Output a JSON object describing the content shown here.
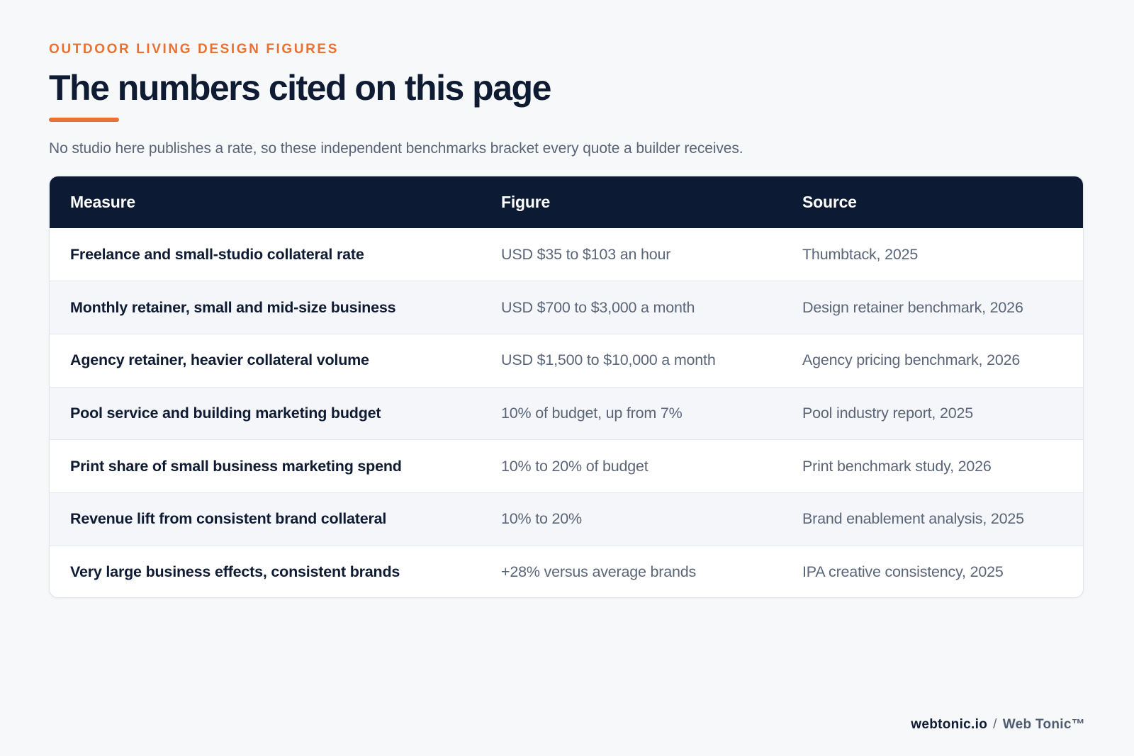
{
  "header": {
    "eyebrow": "OUTDOOR LIVING DESIGN FIGURES",
    "title": "The numbers cited on this page",
    "subtitle": "No studio here publishes a rate, so these independent benchmarks bracket every quote a builder receives."
  },
  "table": {
    "columns": [
      "Measure",
      "Figure",
      "Source"
    ],
    "rows": [
      {
        "measure": "Freelance and small-studio collateral rate",
        "figure": "USD $35 to $103 an hour",
        "source": "Thumbtack, 2025"
      },
      {
        "measure": "Monthly retainer, small and mid-size business",
        "figure": "USD $700 to $3,000 a month",
        "source": "Design retainer benchmark, 2026"
      },
      {
        "measure": "Agency retainer, heavier collateral volume",
        "figure": "USD $1,500 to $10,000 a month",
        "source": "Agency pricing benchmark, 2026"
      },
      {
        "measure": "Pool service and building marketing budget",
        "figure": "10% of budget, up from 7%",
        "source": "Pool industry report, 2025"
      },
      {
        "measure": "Print share of small business marketing spend",
        "figure": "10% to 20% of budget",
        "source": "Print benchmark study, 2026"
      },
      {
        "measure": "Revenue lift from consistent brand collateral",
        "figure": "10% to 20%",
        "source": "Brand enablement analysis, 2025"
      },
      {
        "measure": "Very large business effects, consistent brands",
        "figure": "+28% versus average brands",
        "source": "IPA creative consistency, 2025"
      }
    ]
  },
  "footer": {
    "domain": "webtonic.io",
    "separator": "/",
    "brand": "Web Tonic™"
  },
  "colors": {
    "accent": "#ea7132",
    "header_bg": "#0c1a33",
    "title": "#0f1b33",
    "muted_text": "#5b6578",
    "page_bg": "#f6f8fa"
  }
}
